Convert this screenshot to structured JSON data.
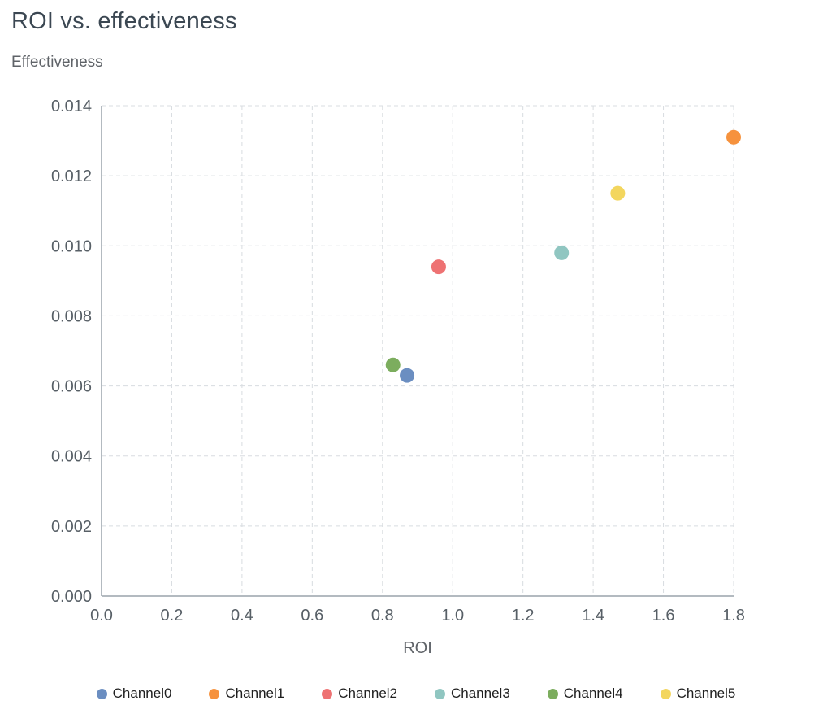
{
  "chart_data": {
    "type": "scatter",
    "title": "ROI vs. effectiveness",
    "xlabel": "ROI",
    "ylabel": "Effectiveness",
    "xlim": [
      0.0,
      1.8
    ],
    "ylim": [
      0.0,
      0.014
    ],
    "x_ticks": [
      "0.0",
      "0.2",
      "0.4",
      "0.6",
      "0.8",
      "1.0",
      "1.2",
      "1.4",
      "1.6",
      "1.8"
    ],
    "y_ticks": [
      "0.000",
      "0.002",
      "0.004",
      "0.006",
      "0.008",
      "0.010",
      "0.012",
      "0.014"
    ],
    "grid": "dashed",
    "legend_position": "bottom",
    "colors": {
      "grid": "#d8dce0",
      "axis": "#9aa3ab",
      "tick_text": "#575f66"
    },
    "series": [
      {
        "name": "Channel0",
        "color": "#6b8ec1",
        "x": 0.87,
        "y": 0.0063
      },
      {
        "name": "Channel1",
        "color": "#f6923d",
        "x": 1.8,
        "y": 0.0131
      },
      {
        "name": "Channel2",
        "color": "#ee7273",
        "x": 0.96,
        "y": 0.0094
      },
      {
        "name": "Channel3",
        "color": "#90c6c1",
        "x": 1.31,
        "y": 0.0098
      },
      {
        "name": "Channel4",
        "color": "#7cad5e",
        "x": 0.83,
        "y": 0.0066
      },
      {
        "name": "Channel5",
        "color": "#f3d65e",
        "x": 1.47,
        "y": 0.0115
      }
    ]
  }
}
